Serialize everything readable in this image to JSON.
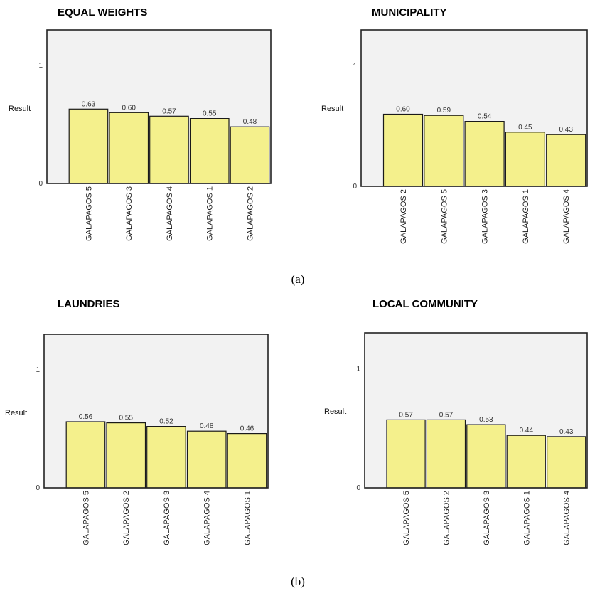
{
  "captions": [
    "(a)",
    "(b)"
  ],
  "chart_data": [
    {
      "type": "bar",
      "title": "EQUAL WEIGHTS",
      "ylabel": "Result",
      "yticks": [
        "0",
        "1"
      ],
      "ylim": [
        0,
        1.3
      ],
      "categories": [
        "GALAPAGOS 5",
        "GALAPAGOS 3",
        "GALAPAGOS 4",
        "GALAPAGOS 1",
        "GALAPAGOS 2"
      ],
      "values": [
        0.63,
        0.6,
        0.57,
        0.55,
        0.48
      ],
      "value_labels": [
        "0.63",
        "0.60",
        "0.57",
        "0.55",
        "0.48"
      ],
      "colors": {
        "bar": "#f4f08c",
        "plot_bg": "#f2f2f2",
        "border": "#222222"
      }
    },
    {
      "type": "bar",
      "title": "MUNICIPALITY",
      "ylabel": "Result",
      "yticks": [
        "0",
        "1"
      ],
      "ylim": [
        0,
        1.3
      ],
      "categories": [
        "GALAPAGOS 2",
        "GALAPAGOS 5",
        "GALAPAGOS 3",
        "GALAPAGOS 1",
        "GALAPAGOS 4"
      ],
      "values": [
        0.6,
        0.59,
        0.54,
        0.45,
        0.43
      ],
      "value_labels": [
        "0.60",
        "0.59",
        "0.54",
        "0.45",
        "0.43"
      ],
      "colors": {
        "bar": "#f4f08c",
        "plot_bg": "#f2f2f2",
        "border": "#222222"
      }
    },
    {
      "type": "bar",
      "title": "LAUNDRIES",
      "ylabel": "Result",
      "yticks": [
        "0",
        "1"
      ],
      "ylim": [
        0,
        1.3
      ],
      "categories": [
        "GALAPAGOS 5",
        "GALAPAGOS 2",
        "GALAPAGOS 3",
        "GALAPAGOS 4",
        "GALAPAGOS 1"
      ],
      "values": [
        0.56,
        0.55,
        0.52,
        0.48,
        0.46
      ],
      "value_labels": [
        "0.56",
        "0.55",
        "0.52",
        "0.48",
        "0.46"
      ],
      "colors": {
        "bar": "#f4f08c",
        "plot_bg": "#f2f2f2",
        "border": "#222222"
      }
    },
    {
      "type": "bar",
      "title": "LOCAL COMMUNITY",
      "ylabel": "Result",
      "yticks": [
        "0",
        "1"
      ],
      "ylim": [
        0,
        1.3
      ],
      "categories": [
        "GALAPAGOS 5",
        "GALAPAGOS 2",
        "GALAPAGOS 3",
        "GALAPAGOS 1",
        "GALAPAGOS 4"
      ],
      "values": [
        0.57,
        0.57,
        0.53,
        0.44,
        0.43
      ],
      "value_labels": [
        "0.57",
        "0.57",
        "0.53",
        "0.44",
        "0.43"
      ],
      "colors": {
        "bar": "#f4f08c",
        "plot_bg": "#f2f2f2",
        "border": "#222222"
      }
    }
  ]
}
